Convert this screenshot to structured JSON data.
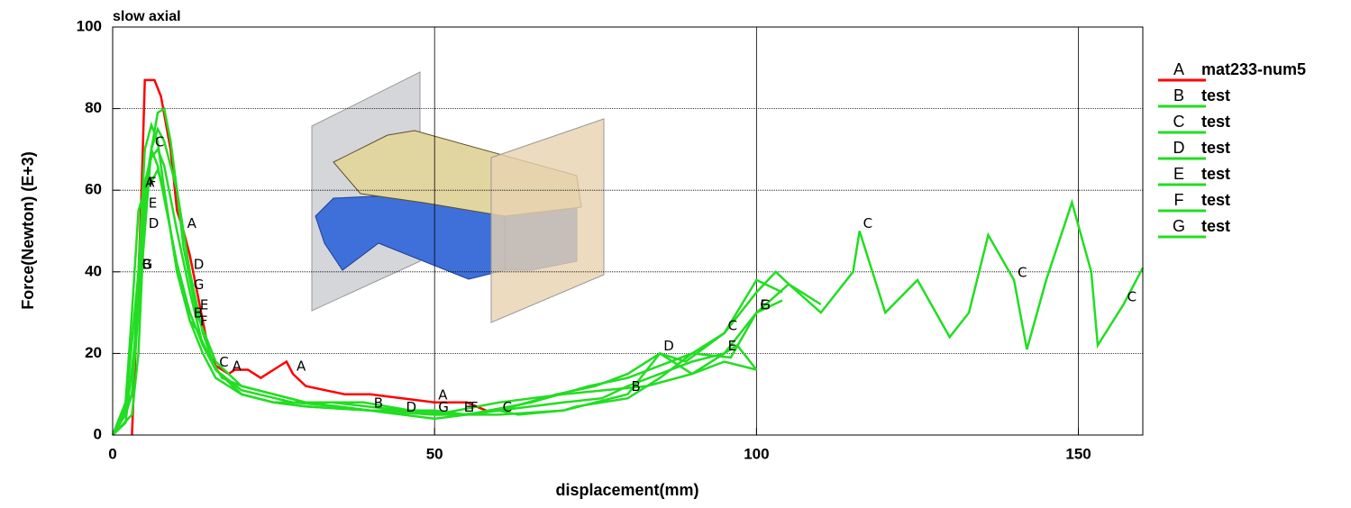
{
  "chart_data": {
    "type": "line",
    "title": "slow axial",
    "xlabel": "displacement(mm)",
    "ylabel": "Force(Newton) (E+3)",
    "xlim": [
      0,
      160
    ],
    "ylim": [
      0,
      100
    ],
    "xticks": [
      0,
      50,
      100,
      150
    ],
    "yticks": [
      0,
      20,
      40,
      60,
      80,
      100
    ],
    "grid": true,
    "legend": "right",
    "series": [
      {
        "marker": "A",
        "name": "mat233-num5",
        "color": "#ff0000",
        "x": [
          3,
          3.8,
          4.5,
          5,
          6.5,
          7.5,
          9,
          10,
          11,
          12,
          13,
          14,
          15,
          16,
          18,
          19,
          21,
          23,
          25,
          27,
          28,
          30,
          33,
          36,
          40,
          45,
          50,
          55,
          58
        ],
        "values": [
          0,
          30,
          60,
          87,
          87,
          83,
          70,
          55,
          50,
          44,
          36,
          28,
          20,
          17,
          15,
          16,
          16,
          14,
          16,
          18,
          15,
          12,
          11,
          10,
          10,
          9,
          8,
          8,
          6
        ]
      },
      {
        "marker": "B",
        "name": "test",
        "color": "#22dd22",
        "x": [
          0,
          2,
          3,
          4,
          5,
          6,
          7,
          8,
          10,
          12,
          14,
          16,
          20,
          25,
          30,
          40,
          50,
          55,
          60,
          63,
          70,
          80,
          85,
          90,
          95,
          100
        ],
        "values": [
          0,
          5,
          10,
          40,
          70,
          76,
          72,
          60,
          40,
          28,
          20,
          14,
          10,
          8,
          7,
          6,
          6,
          5,
          6,
          5,
          6,
          10,
          20,
          15,
          18,
          16
        ]
      },
      {
        "marker": "C",
        "name": "test",
        "color": "#22dd22",
        "x": [
          0,
          2,
          4,
          5,
          6,
          7,
          8,
          10,
          12,
          14,
          16,
          20,
          25,
          30,
          40,
          50,
          60,
          70,
          72,
          80,
          85,
          90,
          95,
          100,
          103,
          105,
          110,
          115,
          116,
          120,
          125,
          130,
          133,
          136,
          140,
          142,
          145,
          149,
          152,
          153,
          157,
          160
        ],
        "values": [
          0,
          3,
          30,
          60,
          70,
          66,
          58,
          42,
          30,
          22,
          16,
          10,
          8,
          7,
          6,
          5,
          5,
          6,
          7,
          9,
          14,
          20,
          25,
          35,
          40,
          37,
          30,
          40,
          50,
          30,
          38,
          24,
          30,
          49,
          38,
          21,
          38,
          57,
          40,
          22,
          32,
          41
        ]
      },
      {
        "marker": "D",
        "name": "test",
        "color": "#22dd22",
        "x": [
          0,
          3,
          5,
          6,
          7,
          8,
          9,
          10,
          12,
          14,
          16,
          20,
          28,
          35,
          45,
          50,
          60,
          69,
          75,
          80,
          85,
          89,
          95,
          100,
          104
        ],
        "values": [
          0,
          10,
          50,
          70,
          79,
          80,
          72,
          60,
          40,
          25,
          16,
          11,
          8,
          7,
          5,
          4,
          6,
          10,
          12,
          15,
          20,
          18,
          25,
          38,
          35
        ]
      },
      {
        "marker": "E",
        "name": "test",
        "color": "#22dd22",
        "x": [
          0,
          3,
          4,
          5,
          6,
          7,
          8,
          10,
          11,
          13,
          16,
          20,
          30,
          40,
          50,
          54,
          60,
          70,
          76,
          80,
          90,
          95,
          97,
          100
        ],
        "values": [
          0,
          5,
          20,
          55,
          70,
          75,
          72,
          60,
          46,
          30,
          18,
          12,
          8,
          6,
          5,
          5,
          6,
          8,
          9,
          12,
          18,
          20,
          22,
          16
        ]
      },
      {
        "marker": "F",
        "name": "test",
        "color": "#22dd22",
        "x": [
          0,
          2,
          3,
          4,
          5,
          6,
          7,
          8,
          10,
          12,
          13,
          16,
          20,
          25,
          34,
          45,
          55,
          65,
          74,
          80,
          90,
          96,
          100,
          104
        ],
        "values": [
          0,
          8,
          30,
          55,
          60,
          62,
          65,
          60,
          40,
          28,
          26,
          16,
          10,
          8,
          8,
          6,
          5,
          8,
          12,
          14,
          20,
          19,
          30,
          33
        ]
      },
      {
        "marker": "G",
        "name": "test",
        "color": "#22dd22",
        "x": [
          0,
          2,
          4,
          5,
          6,
          7,
          8,
          10,
          12,
          14,
          17,
          20,
          30,
          39,
          50,
          60,
          70,
          83,
          90,
          95,
          100,
          105,
          110
        ],
        "values": [
          0,
          6,
          40,
          62,
          68,
          70,
          66,
          50,
          35,
          22,
          14,
          12,
          8,
          8,
          5,
          8,
          10,
          12,
          15,
          20,
          30,
          37,
          32
        ]
      }
    ]
  }
}
